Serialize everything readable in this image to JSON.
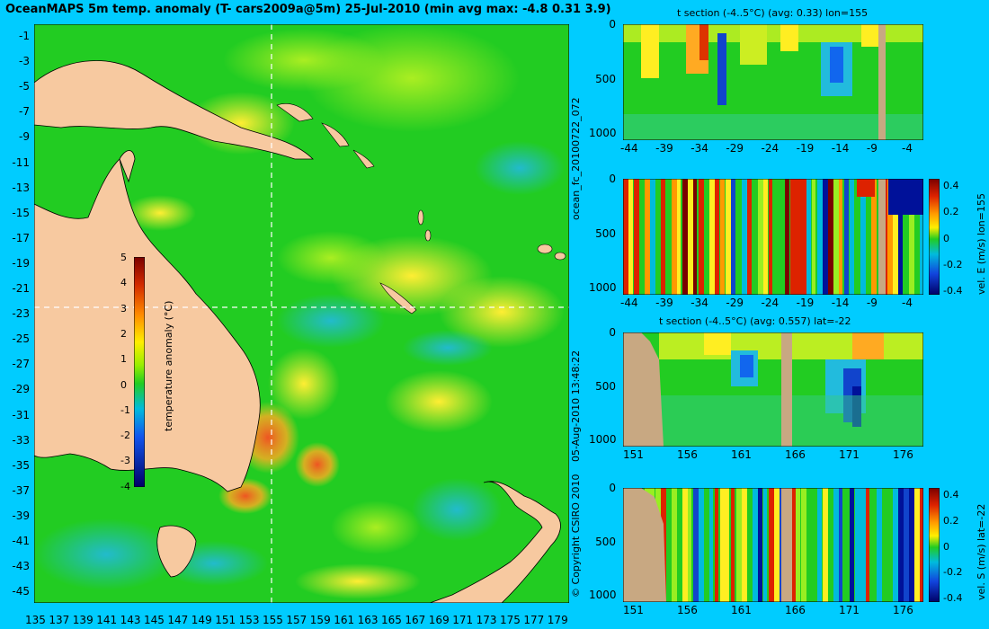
{
  "title": "OceanMAPS 5m temp. anomaly (T- cars2009a@5m) 25-Jul-2010 (min avg max: -4.8 0.31 3.9)",
  "map": {
    "lat_ticks": [
      "-1",
      "-3",
      "-5",
      "-7",
      "-9",
      "-11",
      "-13",
      "-15",
      "-17",
      "-19",
      "-21",
      "-23",
      "-25",
      "-27",
      "-29",
      "-31",
      "-33",
      "-35",
      "-37",
      "-39",
      "-41",
      "-43",
      "-45"
    ],
    "lon_ticks": [
      "135",
      "137",
      "139",
      "141",
      "143",
      "145",
      "147",
      "149",
      "151",
      "153",
      "155",
      "157",
      "159",
      "161",
      "163",
      "165",
      "167",
      "169",
      "171",
      "173",
      "175",
      "177",
      "179"
    ],
    "section_lon": 155,
    "section_lat": -22,
    "colorbar": {
      "label": "temperature anomaly (°C)",
      "ticks": [
        "5",
        "4",
        "3",
        "2",
        "1",
        "0",
        "-1",
        "-2",
        "-3",
        "-4"
      ],
      "range": [
        -4,
        5
      ]
    }
  },
  "panels": [
    {
      "title": "t section (-4..5°C) (avg: 0.33) lon=155",
      "y_ticks": [
        "0",
        "500",
        "1000"
      ],
      "x_ticks": [
        "-44",
        "-39",
        "-34",
        "-29",
        "-24",
        "-19",
        "-14",
        "-9",
        "-4"
      ]
    },
    {
      "title": "",
      "y_ticks": [
        "0",
        "500",
        "1000"
      ],
      "x_ticks": [
        "-44",
        "-39",
        "-34",
        "-29",
        "-24",
        "-19",
        "-14",
        "-9",
        "-4"
      ],
      "colorbar_ticks": [
        "0.4",
        "0.2",
        "0",
        "-0.2",
        "-0.4"
      ],
      "colorbar_label": "vel. E (m/s) lon=155"
    },
    {
      "title": "t section (-4..5°C) (avg: 0.557) lat=-22",
      "y_ticks": [
        "0",
        "500",
        "1000"
      ],
      "x_ticks": [
        "151",
        "156",
        "161",
        "166",
        "171",
        "176"
      ]
    },
    {
      "title": "",
      "y_ticks": [
        "0",
        "500",
        "1000"
      ],
      "x_ticks": [
        "151",
        "156",
        "161",
        "166",
        "171",
        "176"
      ],
      "colorbar_ticks": [
        "0.4",
        "0.2",
        "0",
        "-0.2",
        "-0.4"
      ],
      "colorbar_label": "vel. S (m/s) lat=-22"
    }
  ],
  "side_labels": {
    "run": "ocean_fc_20100722_072",
    "date": "05-Aug-2010 13:48:22",
    "copyright": "© Copyright CSIRO 2010"
  },
  "colors": {
    "background": "#00ccff",
    "land": "#f7c9a0",
    "section_land": "#c8a882",
    "ocean_base": "#22cc22"
  }
}
